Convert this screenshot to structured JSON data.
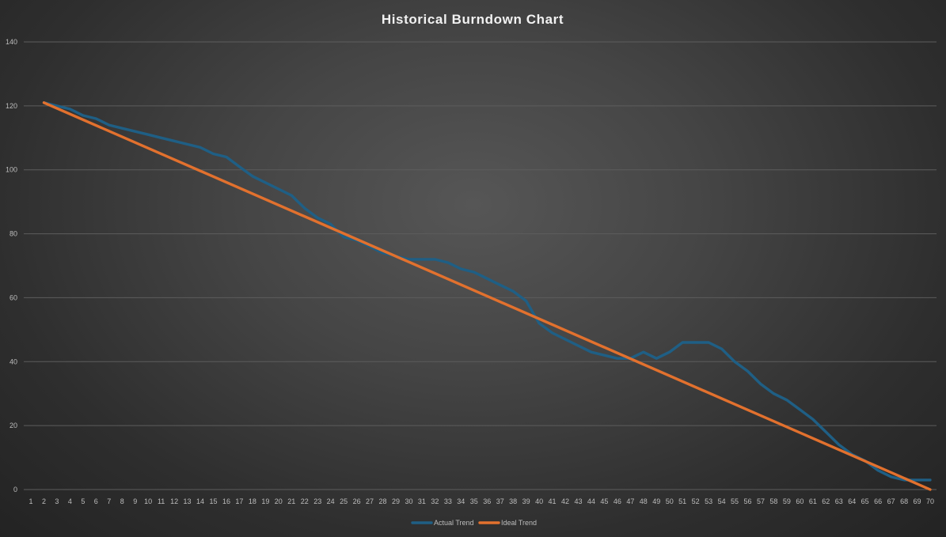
{
  "chart_data": {
    "type": "line",
    "title": "Historical Burndown Chart",
    "xlabel": "",
    "ylabel": "",
    "x_categories": [
      1,
      2,
      3,
      4,
      5,
      6,
      7,
      8,
      9,
      10,
      11,
      12,
      13,
      14,
      15,
      16,
      17,
      18,
      19,
      20,
      21,
      22,
      23,
      24,
      25,
      26,
      27,
      28,
      29,
      30,
      31,
      32,
      33,
      34,
      35,
      36,
      37,
      38,
      39,
      40,
      41,
      42,
      43,
      44,
      45,
      46,
      47,
      48,
      49,
      50,
      51,
      52,
      53,
      54,
      55,
      56,
      57,
      58,
      59,
      60,
      61,
      62,
      63,
      64,
      65,
      66,
      67,
      68,
      69,
      70
    ],
    "ylim": [
      0,
      140
    ],
    "yticks": [
      0,
      20,
      40,
      60,
      80,
      100,
      120,
      140
    ],
    "grid": true,
    "legend_position": "bottom-center",
    "series": [
      {
        "name": "Actual Trend",
        "color": "#1f5f85",
        "x": [
          2,
          3,
          4,
          5,
          6,
          7,
          8,
          9,
          10,
          11,
          12,
          13,
          14,
          15,
          16,
          17,
          18,
          19,
          20,
          21,
          22,
          23,
          24,
          25,
          26,
          27,
          28,
          29,
          30,
          31,
          32,
          33,
          34,
          35,
          36,
          37,
          38,
          39,
          40,
          41,
          42,
          43,
          44,
          45,
          46,
          47,
          48,
          49,
          50,
          51,
          52,
          53,
          54,
          55,
          56,
          57,
          58,
          59,
          60,
          61,
          62,
          63,
          64,
          65,
          66,
          67,
          68,
          69,
          70
        ],
        "values": [
          121,
          120,
          119,
          117,
          116,
          114,
          113,
          112,
          111,
          110,
          109,
          108,
          107,
          105,
          104,
          101,
          98,
          96,
          94,
          92,
          88,
          85,
          83,
          79,
          78,
          76,
          74,
          73,
          72,
          72,
          72,
          71,
          69,
          68,
          66,
          64,
          62,
          59,
          52,
          49,
          47,
          45,
          43,
          42,
          41,
          41,
          43,
          41,
          43,
          46,
          46,
          46,
          44,
          40,
          37,
          33,
          30,
          28,
          25,
          22,
          18,
          14,
          11,
          9,
          6,
          4,
          3,
          3,
          3
        ],
        "mark": "line"
      },
      {
        "name": "Ideal Trend",
        "color": "#e2712e",
        "x": [
          2,
          70
        ],
        "values": [
          121,
          0
        ],
        "mark": "line"
      }
    ]
  }
}
